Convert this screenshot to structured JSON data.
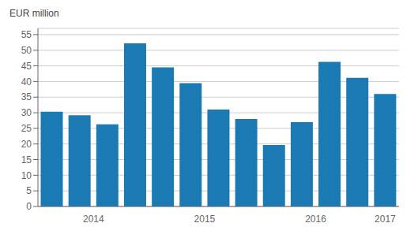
{
  "chart_data": {
    "type": "bar",
    "ylabel": "EUR million",
    "categories": [
      "2014",
      null,
      null,
      null,
      "2015",
      null,
      null,
      null,
      "2016",
      null,
      null,
      null,
      "2017"
    ],
    "values": [
      30.3,
      29.2,
      26.3,
      52.2,
      44.5,
      39.5,
      31.0,
      28.0,
      19.7,
      27.0,
      46.3,
      41.2,
      36.0
    ],
    "color": "#1b7ab3",
    "ylim": [
      0,
      57
    ],
    "yticks": [
      0,
      5,
      10,
      15,
      20,
      25,
      30,
      35,
      40,
      45,
      50,
      55
    ],
    "grid": true
  }
}
